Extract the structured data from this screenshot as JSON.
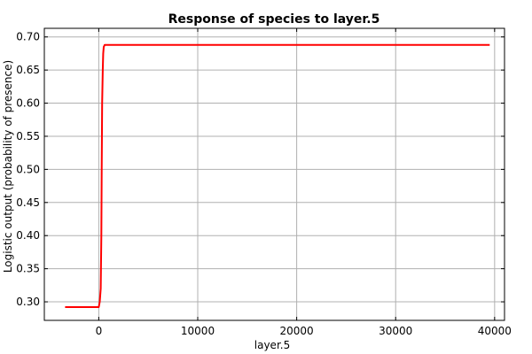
{
  "chart_data": {
    "type": "line",
    "title": "Response of species to layer.5",
    "xlabel": "layer.5",
    "ylabel": "Logistic output (probability of presence)",
    "xlim": [
      -5500,
      41000
    ],
    "ylim": [
      0.272,
      0.713
    ],
    "x_ticks": [
      0,
      10000,
      20000,
      30000,
      40000
    ],
    "x_tick_labels": [
      "0",
      "10000",
      "20000",
      "30000",
      "40000"
    ],
    "y_ticks": [
      0.3,
      0.35,
      0.4,
      0.45,
      0.5,
      0.55,
      0.6,
      0.65,
      0.7
    ],
    "y_tick_labels": [
      "0.30",
      "0.35",
      "0.40",
      "0.45",
      "0.50",
      "0.55",
      "0.60",
      "0.65",
      "0.70"
    ],
    "grid": true,
    "series": [
      {
        "color": "#ff0000",
        "x": [
          -3400,
          0,
          100,
          200,
          260,
          300,
          340,
          400,
          450,
          500,
          600,
          39500
        ],
        "y": [
          0.292,
          0.292,
          0.3,
          0.32,
          0.4,
          0.5,
          0.6,
          0.65,
          0.675,
          0.685,
          0.688,
          0.688
        ]
      }
    ]
  }
}
